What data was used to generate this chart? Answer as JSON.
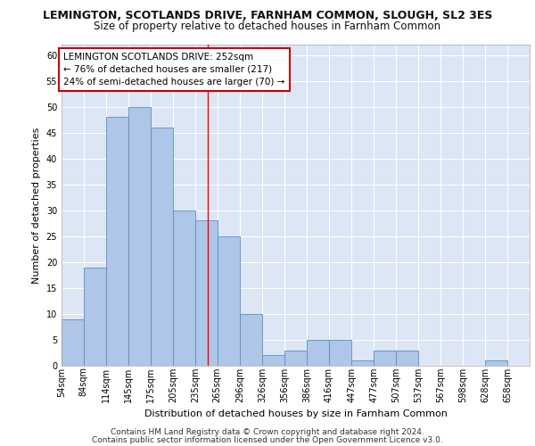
{
  "title": "LEMINGTON, SCOTLANDS DRIVE, FARNHAM COMMON, SLOUGH, SL2 3ES",
  "subtitle": "Size of property relative to detached houses in Farnham Common",
  "xlabel": "Distribution of detached houses by size in Farnham Common",
  "ylabel": "Number of detached properties",
  "footer1": "Contains HM Land Registry data © Crown copyright and database right 2024.",
  "footer2": "Contains public sector information licensed under the Open Government Licence v3.0.",
  "annotation_title": "LEMINGTON SCOTLANDS DRIVE: 252sqm",
  "annotation_line1": "← 76% of detached houses are smaller (217)",
  "annotation_line2": "24% of semi-detached houses are larger (70) →",
  "property_size_sqm": 252,
  "bar_labels": [
    "54sqm",
    "84sqm",
    "114sqm",
    "145sqm",
    "175sqm",
    "205sqm",
    "235sqm",
    "265sqm",
    "296sqm",
    "326sqm",
    "356sqm",
    "386sqm",
    "416sqm",
    "447sqm",
    "477sqm",
    "507sqm",
    "537sqm",
    "567sqm",
    "598sqm",
    "628sqm",
    "658sqm"
  ],
  "bar_values": [
    9,
    19,
    48,
    50,
    46,
    30,
    28,
    25,
    10,
    2,
    3,
    5,
    5,
    1,
    3,
    3,
    0,
    0,
    0,
    1,
    0
  ],
  "bar_left_edges": [
    54,
    84,
    114,
    145,
    175,
    205,
    235,
    265,
    296,
    326,
    356,
    386,
    416,
    447,
    477,
    507,
    537,
    567,
    598,
    628,
    658
  ],
  "bar_widths": [
    30,
    30,
    31,
    30,
    30,
    30,
    30,
    31,
    30,
    30,
    30,
    30,
    31,
    30,
    30,
    30,
    30,
    31,
    30,
    30,
    30
  ],
  "bar_color": "#aec6e8",
  "bar_edge_color": "#5b8ec4",
  "red_line_x": 252,
  "ylim": [
    0,
    62
  ],
  "yticks": [
    0,
    5,
    10,
    15,
    20,
    25,
    30,
    35,
    40,
    45,
    50,
    55,
    60
  ],
  "background_color": "#dce6f5",
  "grid_color": "#ffffff",
  "annotation_box_color": "#ffffff",
  "annotation_box_edge": "#cc0000",
  "title_fontsize": 9,
  "subtitle_fontsize": 8.5,
  "axis_label_fontsize": 8,
  "tick_fontsize": 7,
  "annotation_fontsize": 7.5,
  "footer_fontsize": 6.5
}
